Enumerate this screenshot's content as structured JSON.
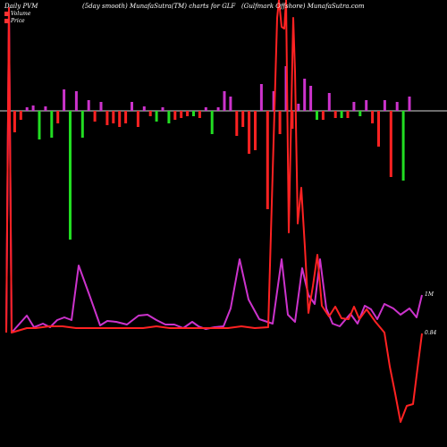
{
  "header": {
    "left": "Daily PVM",
    "mid": "(5day smooth) MunafaSutra(TM) charts for GLF",
    "right": "(Gulfmark Offshore) MunafaSutra.com"
  },
  "legend": [
    {
      "label": "Volume",
      "color": "#ff3333"
    },
    {
      "label": "Price",
      "color": "#ff3333"
    }
  ],
  "chart_data": {
    "type": "bar",
    "volume_bars": [
      {
        "dir": 1,
        "c": "r",
        "v": 1
      },
      {
        "dir": -1,
        "c": "r",
        "v": 24
      },
      {
        "dir": -1,
        "c": "r",
        "v": 10
      },
      {
        "dir": 1,
        "c": "m",
        "v": 4
      },
      {
        "dir": 1,
        "c": "m",
        "v": 6
      },
      {
        "dir": -1,
        "c": "g",
        "v": 32
      },
      {
        "dir": 1,
        "c": "m",
        "v": 5
      },
      {
        "dir": -1,
        "c": "g",
        "v": 30
      },
      {
        "dir": -1,
        "c": "r",
        "v": 14
      },
      {
        "dir": 1,
        "c": "m",
        "v": 24
      },
      {
        "dir": -1,
        "c": "g",
        "v": 144
      },
      {
        "dir": 1,
        "c": "m",
        "v": 22
      },
      {
        "dir": -1,
        "c": "g",
        "v": 30
      },
      {
        "dir": 1,
        "c": "m",
        "v": 12
      },
      {
        "dir": -1,
        "c": "r",
        "v": 12
      },
      {
        "dir": 1,
        "c": "m",
        "v": 10
      },
      {
        "dir": -1,
        "c": "r",
        "v": 16
      },
      {
        "dir": -1,
        "c": "r",
        "v": 14
      },
      {
        "dir": -1,
        "c": "r",
        "v": 18
      },
      {
        "dir": -1,
        "c": "r",
        "v": 14
      },
      {
        "dir": 1,
        "c": "m",
        "v": 10
      },
      {
        "dir": -1,
        "c": "r",
        "v": 18
      },
      {
        "dir": 1,
        "c": "m",
        "v": 5
      },
      {
        "dir": -1,
        "c": "r",
        "v": 6
      },
      {
        "dir": -1,
        "c": "g",
        "v": 12
      },
      {
        "dir": 1,
        "c": "m",
        "v": 4
      },
      {
        "dir": -1,
        "c": "g",
        "v": 14
      },
      {
        "dir": -1,
        "c": "r",
        "v": 10
      },
      {
        "dir": -1,
        "c": "r",
        "v": 8
      },
      {
        "dir": -1,
        "c": "r",
        "v": 6
      },
      {
        "dir": -1,
        "c": "g",
        "v": 6
      },
      {
        "dir": -1,
        "c": "r",
        "v": 8
      },
      {
        "dir": 1,
        "c": "m",
        "v": 4
      },
      {
        "dir": -1,
        "c": "g",
        "v": 26
      },
      {
        "dir": 1,
        "c": "m",
        "v": 4
      },
      {
        "dir": 1,
        "c": "m",
        "v": 22
      },
      {
        "dir": 1,
        "c": "m",
        "v": 16
      },
      {
        "dir": -1,
        "c": "r",
        "v": 28
      },
      {
        "dir": -1,
        "c": "r",
        "v": 18
      },
      {
        "dir": -1,
        "c": "r",
        "v": 48
      },
      {
        "dir": -1,
        "c": "r",
        "v": 44
      },
      {
        "dir": 1,
        "c": "m",
        "v": 30
      },
      {
        "dir": -1,
        "c": "r",
        "v": 110
      },
      {
        "dir": 1,
        "c": "m",
        "v": 22
      },
      {
        "dir": -1,
        "c": "r",
        "v": 26
      },
      {
        "dir": 1,
        "c": "m",
        "v": 50
      },
      {
        "dir": -1,
        "c": "r",
        "v": 20
      },
      {
        "dir": 1,
        "c": "m",
        "v": 8
      },
      {
        "dir": 1,
        "c": "m",
        "v": 36
      },
      {
        "dir": 1,
        "c": "m",
        "v": 28
      },
      {
        "dir": -1,
        "c": "g",
        "v": 10
      },
      {
        "dir": -1,
        "c": "r",
        "v": 10
      },
      {
        "dir": 1,
        "c": "m",
        "v": 20
      },
      {
        "dir": -1,
        "c": "r",
        "v": 8
      },
      {
        "dir": -1,
        "c": "g",
        "v": 8
      },
      {
        "dir": -1,
        "c": "r",
        "v": 8
      },
      {
        "dir": 1,
        "c": "m",
        "v": 10
      },
      {
        "dir": -1,
        "c": "g",
        "v": 6
      },
      {
        "dir": 1,
        "c": "m",
        "v": 12
      },
      {
        "dir": -1,
        "c": "r",
        "v": 14
      },
      {
        "dir": -1,
        "c": "r",
        "v": 40
      },
      {
        "dir": 1,
        "c": "m",
        "v": 12
      },
      {
        "dir": -1,
        "c": "r",
        "v": 74
      },
      {
        "dir": 1,
        "c": "m",
        "v": 10
      },
      {
        "dir": -1,
        "c": "g",
        "v": 78
      },
      {
        "dir": 1,
        "c": "m",
        "v": 16
      }
    ],
    "price_line": [
      [
        7,
        372
      ],
      [
        10,
        9
      ],
      [
        13,
        372
      ],
      [
        30,
        353
      ],
      [
        38,
        366
      ],
      [
        48,
        362
      ],
      [
        56,
        366
      ],
      [
        64,
        358
      ],
      [
        72,
        355
      ],
      [
        80,
        358
      ],
      [
        88,
        297
      ],
      [
        100,
        330
      ],
      [
        112,
        364
      ],
      [
        120,
        359
      ],
      [
        130,
        360
      ],
      [
        142,
        363
      ],
      [
        155,
        353
      ],
      [
        165,
        352
      ],
      [
        175,
        358
      ],
      [
        185,
        363
      ],
      [
        195,
        363
      ],
      [
        205,
        367
      ],
      [
        215,
        360
      ],
      [
        222,
        365
      ],
      [
        230,
        368
      ],
      [
        240,
        366
      ],
      [
        250,
        365
      ],
      [
        258,
        345
      ],
      [
        268,
        290
      ],
      [
        278,
        335
      ],
      [
        290,
        357
      ],
      [
        305,
        362
      ],
      [
        315,
        290
      ],
      [
        322,
        352
      ],
      [
        330,
        360
      ],
      [
        338,
        300
      ],
      [
        345,
        330
      ],
      [
        352,
        340
      ],
      [
        358,
        290
      ],
      [
        365,
        345
      ],
      [
        372,
        362
      ],
      [
        380,
        365
      ],
      [
        392,
        351
      ],
      [
        400,
        362
      ],
      [
        408,
        342
      ],
      [
        415,
        346
      ],
      [
        422,
        357
      ],
      [
        430,
        340
      ],
      [
        440,
        345
      ],
      [
        448,
        352
      ],
      [
        458,
        345
      ],
      [
        466,
        355
      ],
      [
        472,
        330
      ]
    ],
    "volume_line": [
      [
        7,
        372
      ],
      [
        10,
        9
      ],
      [
        13,
        372
      ],
      [
        30,
        367
      ],
      [
        40,
        367
      ],
      [
        55,
        365
      ],
      [
        70,
        365
      ],
      [
        85,
        367
      ],
      [
        100,
        367
      ],
      [
        120,
        367
      ],
      [
        140,
        367
      ],
      [
        160,
        367
      ],
      [
        175,
        365
      ],
      [
        190,
        367
      ],
      [
        205,
        367
      ],
      [
        225,
        367
      ],
      [
        240,
        367
      ],
      [
        255,
        367
      ],
      [
        270,
        365
      ],
      [
        285,
        367
      ],
      [
        300,
        366
      ],
      [
        310,
        20
      ],
      [
        312,
        0
      ],
      [
        315,
        30
      ],
      [
        318,
        32
      ],
      [
        320,
        0
      ],
      [
        323,
        260
      ],
      [
        328,
        20
      ],
      [
        330,
        80
      ],
      [
        333,
        250
      ],
      [
        337,
        210
      ],
      [
        341,
        276
      ],
      [
        345,
        350
      ],
      [
        350,
        320
      ],
      [
        355,
        285
      ],
      [
        360,
        342
      ],
      [
        368,
        354
      ],
      [
        375,
        343
      ],
      [
        382,
        356
      ],
      [
        390,
        357
      ],
      [
        396,
        343
      ],
      [
        402,
        357
      ],
      [
        410,
        346
      ],
      [
        420,
        360
      ],
      [
        430,
        372
      ],
      [
        436,
        410
      ],
      [
        442,
        440
      ],
      [
        448,
        472
      ],
      [
        455,
        454
      ],
      [
        462,
        452
      ],
      [
        466,
        420
      ],
      [
        472,
        373
      ]
    ],
    "end_labels": {
      "price": "1M",
      "volume": "0.84"
    }
  }
}
